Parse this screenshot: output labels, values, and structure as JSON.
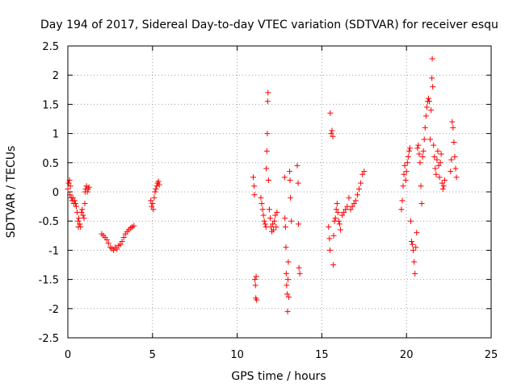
{
  "chart_data": {
    "type": "scatter",
    "title": "Day 194 of 2017, Sidereal Day-to-day VTEC variation (SDTVAR) for receiver esqu",
    "xlabel": "GPS time / hours",
    "ylabel": "SDTVAR / TECUs",
    "xlim": [
      0,
      25
    ],
    "ylim": [
      -2.5,
      2.5
    ],
    "grid": true,
    "marker": "+",
    "marker_color": "#ff0000",
    "grid_color": "#a0a0a0",
    "x_ticks": [
      {
        "value": 0,
        "label": "0"
      },
      {
        "value": 5,
        "label": "5"
      },
      {
        "value": 10,
        "label": "10"
      },
      {
        "value": 15,
        "label": "15"
      },
      {
        "value": 20,
        "label": "20"
      },
      {
        "value": 25,
        "label": "25"
      }
    ],
    "y_ticks": [
      {
        "value": 2.5,
        "label": "2.5"
      },
      {
        "value": 2,
        "label": "2"
      },
      {
        "value": 1.5,
        "label": "1.5"
      },
      {
        "value": 1,
        "label": "1"
      },
      {
        "value": 0.5,
        "label": "0.5"
      },
      {
        "value": 0,
        "label": "0"
      },
      {
        "value": -0.5,
        "label": "-0.5"
      },
      {
        "value": -1,
        "label": "-1"
      },
      {
        "value": -1.5,
        "label": "-1.5"
      },
      {
        "value": -2,
        "label": "-2"
      },
      {
        "value": -2.5,
        "label": "-2.5"
      }
    ],
    "series": [
      {
        "name": "SDTVAR",
        "points": [
          [
            0.0,
            0.05
          ],
          [
            0.05,
            0.15
          ],
          [
            0.1,
            0.2
          ],
          [
            0.12,
            -0.05
          ],
          [
            0.15,
            0.1
          ],
          [
            0.2,
            -0.1
          ],
          [
            0.25,
            -0.15
          ],
          [
            0.3,
            -0.1
          ],
          [
            0.35,
            -0.2
          ],
          [
            0.4,
            -0.15
          ],
          [
            0.45,
            -0.2
          ],
          [
            0.5,
            -0.25
          ],
          [
            0.55,
            -0.35
          ],
          [
            0.6,
            -0.5
          ],
          [
            0.62,
            -0.6
          ],
          [
            0.65,
            -0.45
          ],
          [
            0.7,
            -0.55
          ],
          [
            0.75,
            -0.6
          ],
          [
            0.8,
            -0.35
          ],
          [
            0.85,
            -0.3
          ],
          [
            0.9,
            -0.4
          ],
          [
            0.95,
            -0.45
          ],
          [
            1.0,
            -0.2
          ],
          [
            1.02,
            0.0
          ],
          [
            1.05,
            0.05
          ],
          [
            1.1,
            0.1
          ],
          [
            1.15,
            0.0
          ],
          [
            1.2,
            0.05
          ],
          [
            1.25,
            0.08
          ],
          [
            2.0,
            -0.72
          ],
          [
            2.1,
            -0.75
          ],
          [
            2.2,
            -0.78
          ],
          [
            2.3,
            -0.82
          ],
          [
            2.4,
            -0.88
          ],
          [
            2.5,
            -0.95
          ],
          [
            2.6,
            -0.97
          ],
          [
            2.7,
            -1.0
          ],
          [
            2.8,
            -0.95
          ],
          [
            2.9,
            -0.98
          ],
          [
            3.0,
            -0.92
          ],
          [
            3.1,
            -0.9
          ],
          [
            3.2,
            -0.85
          ],
          [
            3.3,
            -0.78
          ],
          [
            3.4,
            -0.72
          ],
          [
            3.5,
            -0.68
          ],
          [
            3.6,
            -0.65
          ],
          [
            3.7,
            -0.62
          ],
          [
            3.8,
            -0.6
          ],
          [
            3.9,
            -0.58
          ],
          [
            4.9,
            -0.15
          ],
          [
            4.95,
            -0.25
          ],
          [
            5.0,
            -0.2
          ],
          [
            5.05,
            -0.3
          ],
          [
            5.1,
            -0.1
          ],
          [
            5.15,
            0.0
          ],
          [
            5.2,
            0.05
          ],
          [
            5.25,
            0.1
          ],
          [
            5.3,
            0.15
          ],
          [
            5.35,
            0.18
          ],
          [
            5.4,
            0.12
          ],
          [
            10.95,
            0.25
          ],
          [
            11.0,
            0.1
          ],
          [
            11.02,
            -0.05
          ],
          [
            11.05,
            -1.5
          ],
          [
            11.08,
            -1.6
          ],
          [
            11.1,
            -1.82
          ],
          [
            11.12,
            -1.45
          ],
          [
            11.15,
            -1.85
          ],
          [
            11.4,
            -0.1
          ],
          [
            11.45,
            -0.2
          ],
          [
            11.5,
            -0.3
          ],
          [
            11.55,
            -0.4
          ],
          [
            11.6,
            -0.5
          ],
          [
            11.65,
            -0.55
          ],
          [
            11.7,
            -0.6
          ],
          [
            11.72,
            0.4
          ],
          [
            11.75,
            0.7
          ],
          [
            11.78,
            1.0
          ],
          [
            11.8,
            1.55
          ],
          [
            11.82,
            1.7
          ],
          [
            11.85,
            0.2
          ],
          [
            11.9,
            -0.3
          ],
          [
            11.95,
            -0.45
          ],
          [
            12.0,
            -0.6
          ],
          [
            12.05,
            -0.68
          ],
          [
            12.1,
            -0.55
          ],
          [
            12.15,
            -0.65
          ],
          [
            12.2,
            -0.5
          ],
          [
            12.25,
            -0.4
          ],
          [
            12.3,
            -0.6
          ],
          [
            12.35,
            -0.35
          ],
          [
            12.8,
            0.25
          ],
          [
            12.82,
            -0.45
          ],
          [
            12.85,
            -0.6
          ],
          [
            12.88,
            -0.95
          ],
          [
            12.9,
            -1.4
          ],
          [
            12.92,
            -1.6
          ],
          [
            12.95,
            -1.75
          ],
          [
            12.98,
            -2.05
          ],
          [
            13.0,
            -1.5
          ],
          [
            13.02,
            -1.2
          ],
          [
            13.05,
            -1.8
          ],
          [
            13.1,
            0.35
          ],
          [
            13.12,
            0.2
          ],
          [
            13.15,
            -0.1
          ],
          [
            13.2,
            -0.5
          ],
          [
            13.55,
            0.45
          ],
          [
            13.6,
            0.15
          ],
          [
            13.62,
            -0.55
          ],
          [
            13.65,
            -1.3
          ],
          [
            13.7,
            -1.4
          ],
          [
            15.4,
            -0.6
          ],
          [
            15.45,
            -0.8
          ],
          [
            15.48,
            -1.0
          ],
          [
            15.5,
            1.35
          ],
          [
            15.55,
            1.0
          ],
          [
            15.6,
            1.05
          ],
          [
            15.65,
            0.95
          ],
          [
            15.68,
            -1.25
          ],
          [
            15.7,
            -0.75
          ],
          [
            15.75,
            -0.5
          ],
          [
            15.8,
            -0.45
          ],
          [
            15.85,
            -0.3
          ],
          [
            15.9,
            -0.2
          ],
          [
            15.95,
            -0.35
          ],
          [
            16.0,
            -0.5
          ],
          [
            16.05,
            -0.55
          ],
          [
            16.1,
            -0.65
          ],
          [
            16.2,
            -0.4
          ],
          [
            16.3,
            -0.35
          ],
          [
            16.4,
            -0.3
          ],
          [
            16.5,
            -0.25
          ],
          [
            16.6,
            -0.1
          ],
          [
            16.7,
            -0.3
          ],
          [
            16.8,
            -0.25
          ],
          [
            16.9,
            -0.2
          ],
          [
            17.0,
            -0.15
          ],
          [
            17.1,
            -0.05
          ],
          [
            17.2,
            0.05
          ],
          [
            17.3,
            0.15
          ],
          [
            17.4,
            0.3
          ],
          [
            17.5,
            0.35
          ],
          [
            19.7,
            -0.3
          ],
          [
            19.75,
            -0.15
          ],
          [
            19.8,
            0.1
          ],
          [
            19.85,
            0.3
          ],
          [
            19.9,
            0.45
          ],
          [
            19.95,
            0.2
          ],
          [
            20.0,
            0.35
          ],
          [
            20.05,
            0.5
          ],
          [
            20.1,
            0.6
          ],
          [
            20.15,
            0.7
          ],
          [
            20.2,
            0.75
          ],
          [
            20.25,
            -0.5
          ],
          [
            20.3,
            -0.85
          ],
          [
            20.35,
            -0.9
          ],
          [
            20.4,
            -1.0
          ],
          [
            20.45,
            -1.2
          ],
          [
            20.5,
            -1.4
          ],
          [
            20.55,
            -0.95
          ],
          [
            20.6,
            -0.7
          ],
          [
            20.65,
            0.75
          ],
          [
            20.7,
            0.8
          ],
          [
            20.75,
            0.65
          ],
          [
            20.8,
            0.5
          ],
          [
            20.85,
            0.1
          ],
          [
            20.9,
            -0.2
          ],
          [
            20.95,
            0.6
          ],
          [
            21.0,
            0.7
          ],
          [
            21.05,
            0.9
          ],
          [
            21.1,
            1.1
          ],
          [
            21.15,
            1.3
          ],
          [
            21.2,
            1.45
          ],
          [
            21.25,
            1.55
          ],
          [
            21.3,
            1.6
          ],
          [
            21.35,
            1.55
          ],
          [
            21.4,
            0.9
          ],
          [
            21.45,
            1.4
          ],
          [
            21.5,
            1.95
          ],
          [
            21.52,
            2.28
          ],
          [
            21.55,
            1.8
          ],
          [
            21.6,
            0.8
          ],
          [
            21.65,
            0.6
          ],
          [
            21.7,
            0.4
          ],
          [
            21.75,
            0.3
          ],
          [
            21.8,
            0.55
          ],
          [
            21.85,
            0.7
          ],
          [
            21.9,
            0.45
          ],
          [
            21.95,
            0.25
          ],
          [
            22.0,
            0.5
          ],
          [
            22.05,
            0.65
          ],
          [
            22.1,
            0.15
          ],
          [
            22.15,
            0.05
          ],
          [
            22.2,
            0.1
          ],
          [
            22.25,
            0.2
          ],
          [
            22.6,
            0.35
          ],
          [
            22.65,
            0.55
          ],
          [
            22.7,
            1.2
          ],
          [
            22.75,
            1.1
          ],
          [
            22.8,
            0.85
          ],
          [
            22.85,
            0.6
          ],
          [
            22.9,
            0.4
          ],
          [
            22.95,
            0.25
          ]
        ]
      }
    ]
  }
}
